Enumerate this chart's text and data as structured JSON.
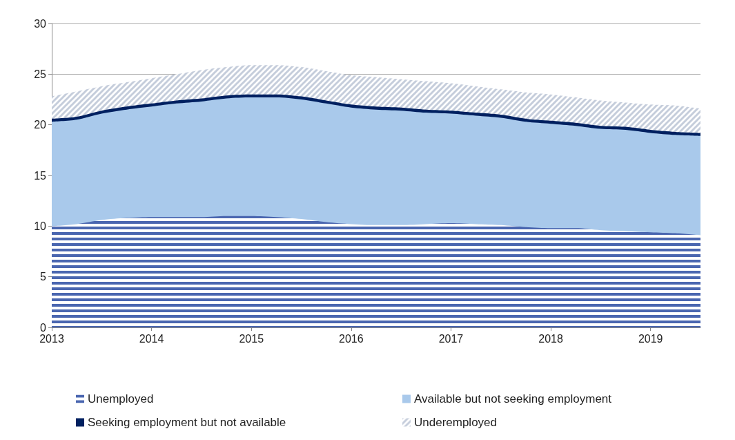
{
  "chart_data": {
    "type": "area",
    "stacked": true,
    "x": [
      2013,
      2013.25,
      2013.5,
      2013.75,
      2014,
      2014.25,
      2014.5,
      2014.75,
      2015,
      2015.25,
      2015.5,
      2015.75,
      2016,
      2016.25,
      2016.5,
      2016.75,
      2017,
      2017.25,
      2017.5,
      2017.75,
      2018,
      2018.25,
      2018.5,
      2018.75,
      2019,
      2019.25,
      2019.5
    ],
    "xlim": [
      2013,
      2019.5
    ],
    "xticks": [
      2013,
      2014,
      2015,
      2016,
      2017,
      2018,
      2019
    ],
    "ylim": [
      0,
      30
    ],
    "yticks": [
      0,
      5,
      10,
      15,
      20,
      25,
      30
    ],
    "grid": "y",
    "legend": "bottom",
    "series": [
      {
        "name": "Unemployed",
        "color": "#4a66b0",
        "values": [
          10.0,
          10.2,
          10.6,
          10.8,
          10.9,
          10.9,
          10.9,
          11.0,
          11.0,
          10.9,
          10.7,
          10.4,
          10.2,
          10.1,
          10.1,
          10.2,
          10.3,
          10.2,
          10.1,
          9.9,
          9.8,
          9.8,
          9.6,
          9.5,
          9.4,
          9.3,
          9.1
        ]
      },
      {
        "name": "Available but not seeking employment",
        "color": "#a9c9eb",
        "values": [
          10.3,
          10.3,
          10.5,
          10.7,
          10.9,
          11.2,
          11.4,
          11.6,
          11.7,
          11.8,
          11.8,
          11.7,
          11.5,
          11.4,
          11.3,
          11.0,
          10.8,
          10.7,
          10.6,
          10.4,
          10.3,
          10.1,
          10.0,
          10.0,
          9.8,
          9.7,
          9.8
        ]
      },
      {
        "name": "Seeking employment but not available",
        "color": "#002060",
        "values": [
          0.3,
          0.3,
          0.3,
          0.3,
          0.3,
          0.3,
          0.3,
          0.3,
          0.3,
          0.3,
          0.3,
          0.3,
          0.3,
          0.3,
          0.3,
          0.3,
          0.3,
          0.3,
          0.3,
          0.3,
          0.3,
          0.3,
          0.3,
          0.3,
          0.3,
          0.3,
          0.3
        ]
      },
      {
        "name": "Underemployed",
        "color": "#c5cddb",
        "values": [
          2.2,
          2.5,
          2.4,
          2.4,
          2.5,
          2.6,
          2.8,
          2.8,
          2.9,
          2.9,
          2.9,
          2.9,
          2.9,
          2.9,
          2.8,
          2.8,
          2.7,
          2.6,
          2.5,
          2.6,
          2.6,
          2.5,
          2.5,
          2.4,
          2.5,
          2.6,
          2.4
        ]
      }
    ]
  }
}
